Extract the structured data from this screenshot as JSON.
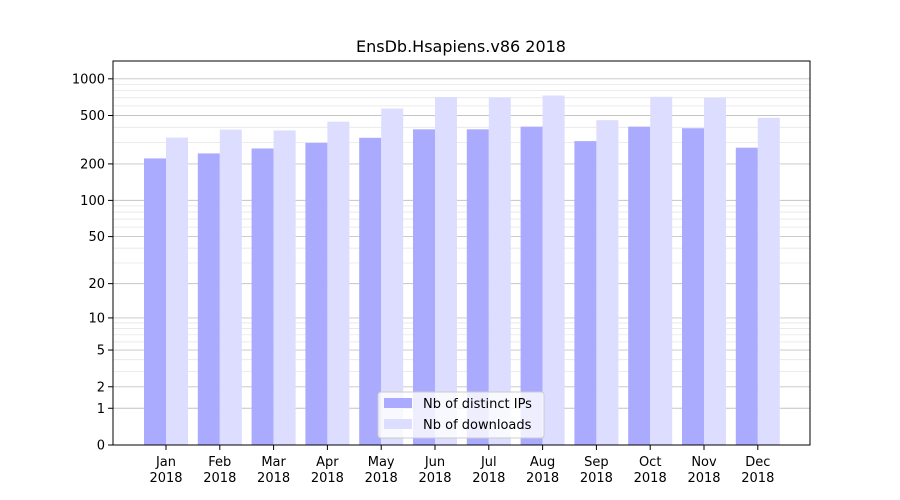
{
  "chart_data": {
    "type": "bar",
    "title": "EnsDb.Hsapiens.v86 2018",
    "xlabel": "",
    "ylabel": "",
    "yscale": "log1p",
    "ylim": [
      0,
      1400
    ],
    "y_ticks": [
      0,
      1,
      2,
      5,
      10,
      20,
      50,
      100,
      200,
      500,
      1000
    ],
    "y_tick_labels": [
      "0",
      "1",
      "2",
      "5",
      "10",
      "20",
      "50",
      "100",
      "200",
      "500",
      "1000"
    ],
    "categories": [
      "Jan",
      "Feb",
      "Mar",
      "Apr",
      "May",
      "Jun",
      "Jul",
      "Aug",
      "Sep",
      "Oct",
      "Nov",
      "Dec"
    ],
    "category_year": "2018",
    "grid": true,
    "legend_position": "lower center",
    "series": [
      {
        "name": "Nb of distinct IPs",
        "color": "#aaaaff",
        "values": [
          222,
          244,
          268,
          298,
          328,
          385,
          385,
          405,
          308,
          405,
          393,
          272
        ]
      },
      {
        "name": "Nb of downloads",
        "color": "#ddddff",
        "values": [
          329,
          383,
          377,
          445,
          570,
          710,
          705,
          730,
          458,
          712,
          700,
          479
        ]
      }
    ]
  }
}
